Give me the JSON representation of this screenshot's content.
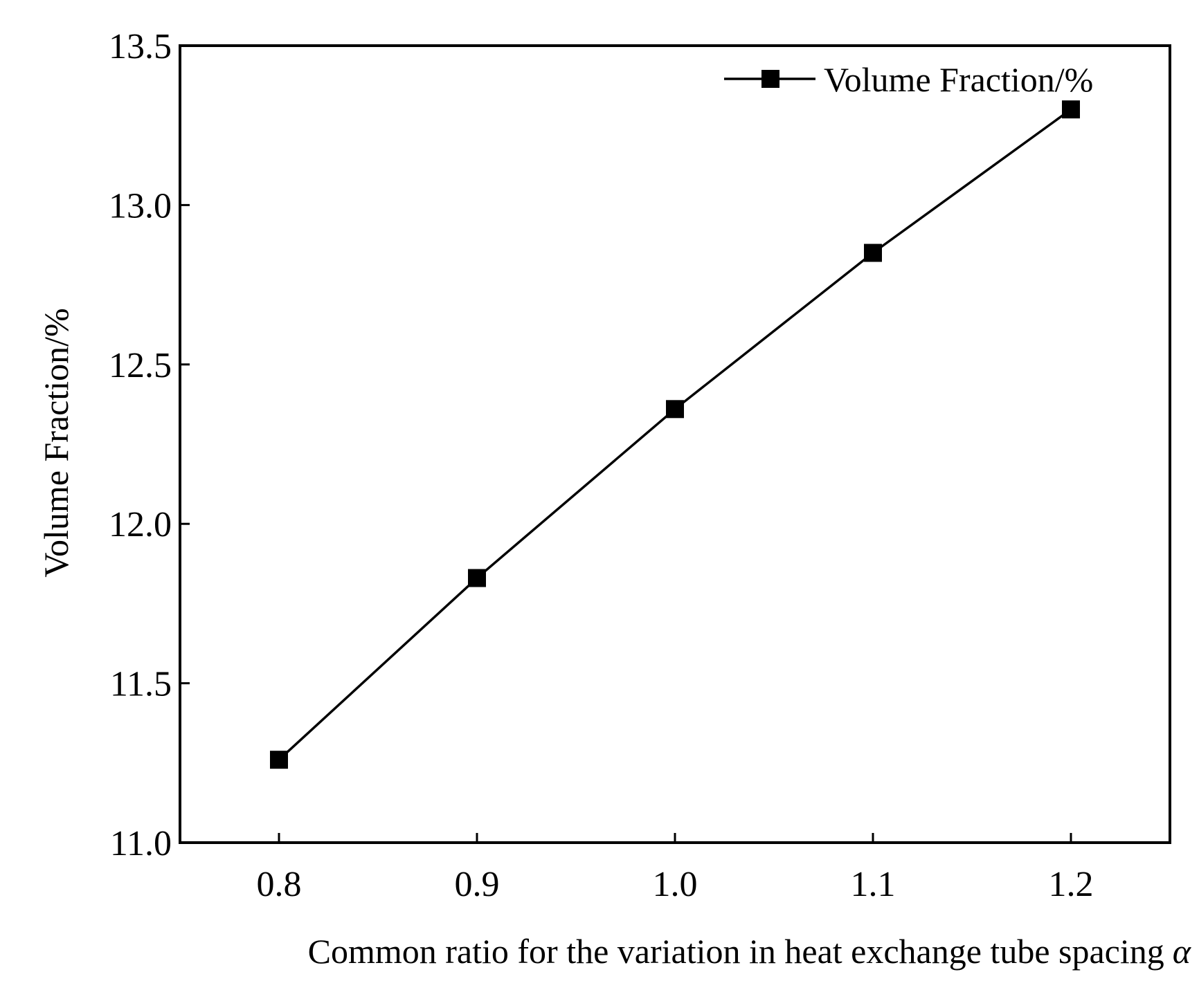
{
  "chart_data": {
    "type": "line",
    "title": "",
    "xlabel": "Common ratio for the variation in heat exchange tube spacing",
    "xlabel_symbol": "α",
    "ylabel": "Volume Fraction/%",
    "x": [
      0.8,
      0.9,
      1.0,
      1.1,
      1.2
    ],
    "xticks": [
      "0.8",
      "0.9",
      "1.0",
      "1.1",
      "1.2"
    ],
    "yticks": [
      "11.0",
      "11.5",
      "12.0",
      "12.5",
      "13.0",
      "13.5"
    ],
    "xlim": [
      0.75,
      1.25
    ],
    "ylim": [
      11.0,
      13.5
    ],
    "series": [
      {
        "name": "Volume Fraction/%",
        "values": [
          11.26,
          11.83,
          12.36,
          12.85,
          13.3
        ],
        "color": "#000000",
        "marker": "square"
      }
    ],
    "legend": "top-right",
    "grid": false
  }
}
